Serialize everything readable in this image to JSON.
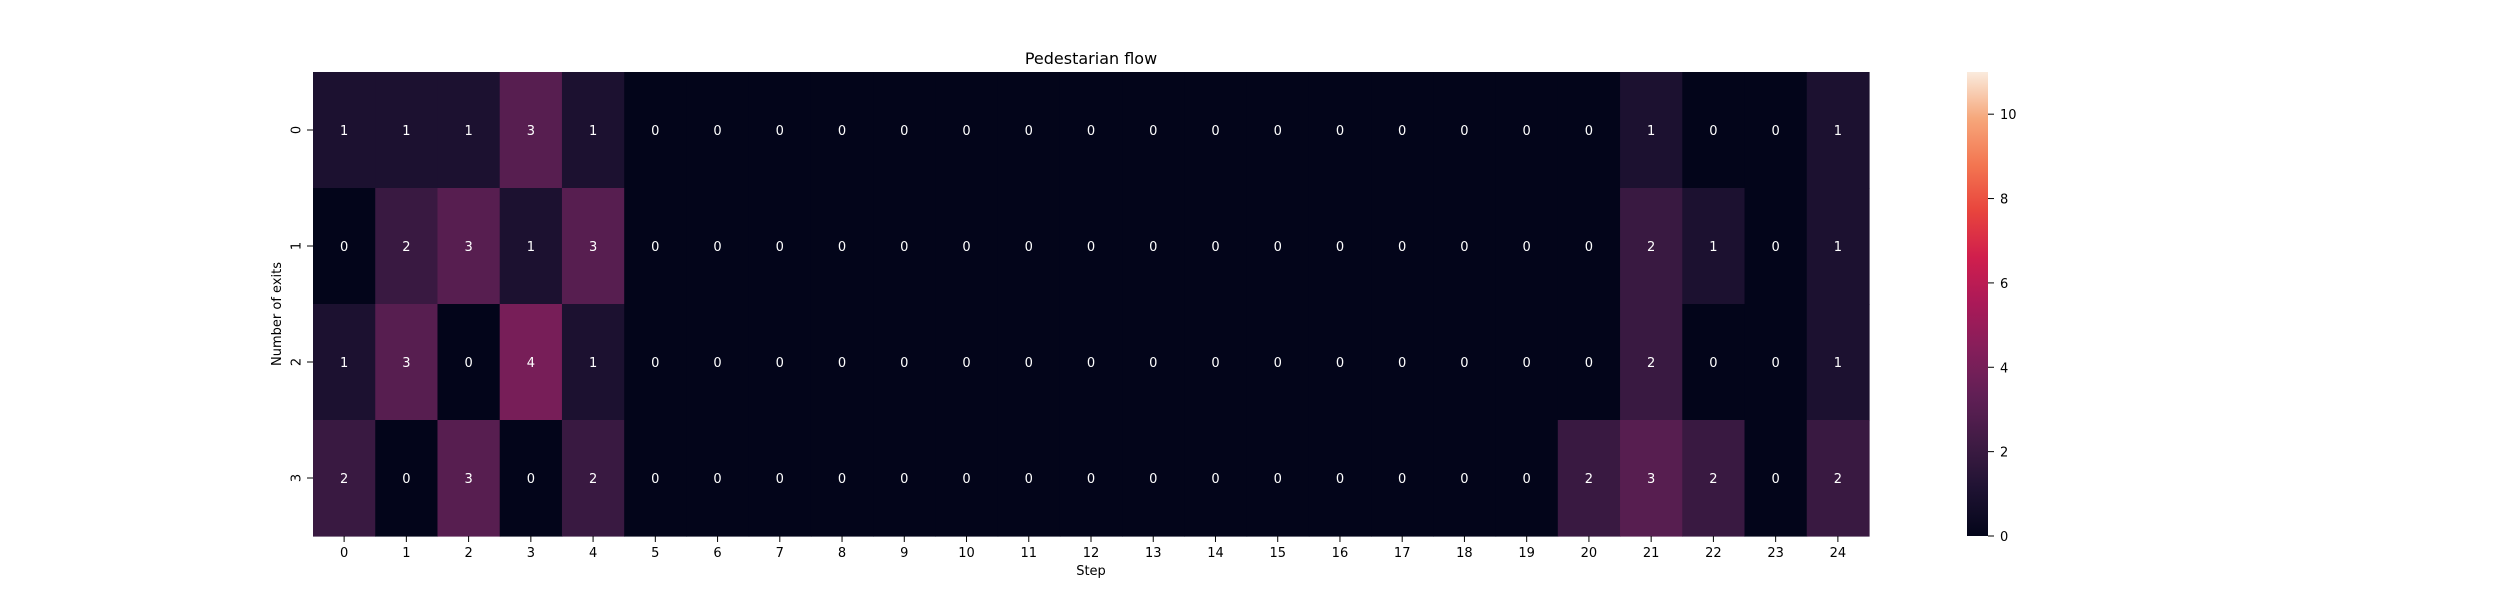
{
  "chart_data": {
    "type": "heatmap",
    "title": "Pedestarian flow",
    "xlabel": "Step",
    "ylabel": "Number of exits",
    "x": [
      "0",
      "1",
      "2",
      "3",
      "4",
      "5",
      "6",
      "7",
      "8",
      "9",
      "10",
      "11",
      "12",
      "13",
      "14",
      "15",
      "16",
      "17",
      "18",
      "19",
      "20",
      "21",
      "22",
      "23",
      "24"
    ],
    "y": [
      "0",
      "1",
      "2",
      "3"
    ],
    "values": [
      [
        1,
        1,
        1,
        3,
        1,
        0,
        0,
        0,
        0,
        0,
        0,
        0,
        0,
        0,
        0,
        0,
        0,
        0,
        0,
        0,
        0,
        1,
        0,
        0,
        1
      ],
      [
        0,
        2,
        3,
        1,
        3,
        0,
        0,
        0,
        0,
        0,
        0,
        0,
        0,
        0,
        0,
        0,
        0,
        0,
        0,
        0,
        0,
        2,
        1,
        0,
        1
      ],
      [
        1,
        3,
        0,
        4,
        1,
        0,
        0,
        0,
        0,
        0,
        0,
        0,
        0,
        0,
        0,
        0,
        0,
        0,
        0,
        0,
        0,
        2,
        0,
        0,
        1
      ],
      [
        2,
        0,
        3,
        0,
        2,
        0,
        0,
        0,
        0,
        0,
        0,
        0,
        0,
        0,
        0,
        0,
        0,
        0,
        0,
        0,
        2,
        3,
        2,
        0,
        2
      ]
    ],
    "vmin": 0,
    "vmax": 11,
    "colormap": "rocket",
    "colorbar_ticks": [
      0,
      2,
      4,
      6,
      8,
      10
    ],
    "annot": true,
    "grid": false,
    "legend": "colorbar-right"
  }
}
